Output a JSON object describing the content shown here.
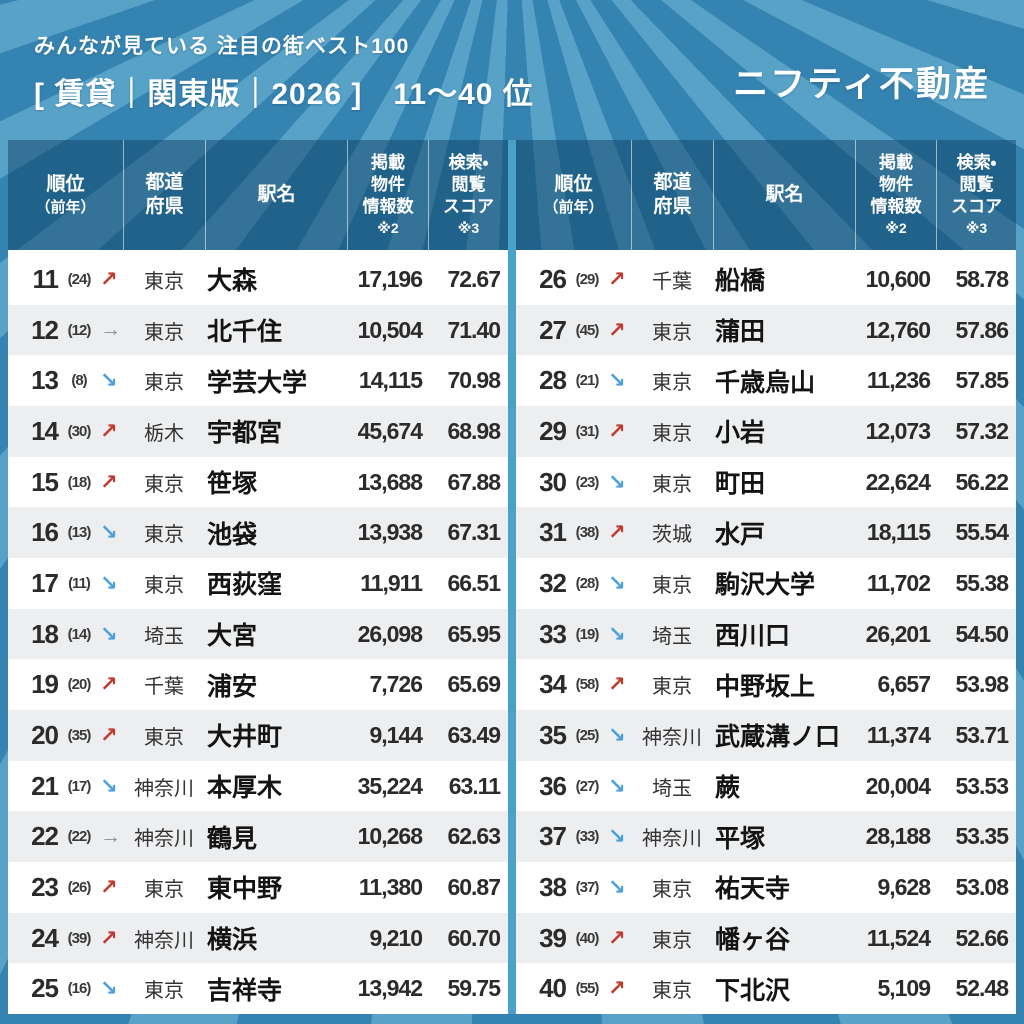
{
  "page": {
    "subtitle": "みんなが見ている 注目の街ベスト100",
    "title": "[ 賃貸｜関東版｜2026 ]　11〜40 位",
    "logo": "ニフティ不動産"
  },
  "table": {
    "header": {
      "rank_l1": "順位",
      "rank_l2": "（前年）",
      "pref_l1": "都道",
      "pref_l2": "府県",
      "station": "駅名",
      "count_l1": "掲載",
      "count_l2": "物件",
      "count_l3": "情報数",
      "count_note": "※2",
      "score_l1": "検索・",
      "score_l2": "閲覧",
      "score_l3": "スコア",
      "score_note": "※3"
    }
  },
  "trend_glyphs": {
    "up": "↗",
    "flat": "→",
    "down": "↘"
  },
  "colors": {
    "trend_up": "#c0392e",
    "trend_down": "#4aa0dc",
    "trend_flat": "#8c8f92",
    "bg_base": "#3583b1",
    "bg_ray": "#58a2c8",
    "header_overlay": "rgba(10,58,94,0.46)",
    "row_alt": "#eceef0",
    "panel_bg": "#ffffff",
    "text_main": "#2b2b2b"
  },
  "chart_data": {
    "type": "table",
    "title": "みんなが見ている 注目の街ベスト100 [賃貸｜関東版｜2026] 11〜40位",
    "columns": [
      "順位",
      "前年順位",
      "前年比トレンド",
      "都道府県",
      "駅名",
      "掲載物件情報数 ※2",
      "検索・閲覧スコア ※3"
    ],
    "rows": [
      {
        "rank": "11",
        "prev": "(24)",
        "trend": "up",
        "pref": "東京",
        "station": "大森",
        "count": "17,196",
        "score": "72.67"
      },
      {
        "rank": "12",
        "prev": "(12)",
        "trend": "flat",
        "pref": "東京",
        "station": "北千住",
        "count": "10,504",
        "score": "71.40"
      },
      {
        "rank": "13",
        "prev": "(8)",
        "trend": "down",
        "pref": "東京",
        "station": "学芸大学",
        "count": "14,115",
        "score": "70.98"
      },
      {
        "rank": "14",
        "prev": "(30)",
        "trend": "up",
        "pref": "栃木",
        "station": "宇都宮",
        "count": "45,674",
        "score": "68.98"
      },
      {
        "rank": "15",
        "prev": "(18)",
        "trend": "up",
        "pref": "東京",
        "station": "笹塚",
        "count": "13,688",
        "score": "67.88"
      },
      {
        "rank": "16",
        "prev": "(13)",
        "trend": "down",
        "pref": "東京",
        "station": "池袋",
        "count": "13,938",
        "score": "67.31"
      },
      {
        "rank": "17",
        "prev": "(11)",
        "trend": "down",
        "pref": "東京",
        "station": "西荻窪",
        "count": "11,911",
        "score": "66.51"
      },
      {
        "rank": "18",
        "prev": "(14)",
        "trend": "down",
        "pref": "埼玉",
        "station": "大宮",
        "count": "26,098",
        "score": "65.95"
      },
      {
        "rank": "19",
        "prev": "(20)",
        "trend": "up",
        "pref": "千葉",
        "station": "浦安",
        "count": "7,726",
        "score": "65.69"
      },
      {
        "rank": "20",
        "prev": "(35)",
        "trend": "up",
        "pref": "東京",
        "station": "大井町",
        "count": "9,144",
        "score": "63.49"
      },
      {
        "rank": "21",
        "prev": "(17)",
        "trend": "down",
        "pref": "神奈川",
        "station": "本厚木",
        "count": "35,224",
        "score": "63.11"
      },
      {
        "rank": "22",
        "prev": "(22)",
        "trend": "flat",
        "pref": "神奈川",
        "station": "鶴見",
        "count": "10,268",
        "score": "62.63"
      },
      {
        "rank": "23",
        "prev": "(26)",
        "trend": "up",
        "pref": "東京",
        "station": "東中野",
        "count": "11,380",
        "score": "60.87"
      },
      {
        "rank": "24",
        "prev": "(39)",
        "trend": "up",
        "pref": "神奈川",
        "station": "横浜",
        "count": "9,210",
        "score": "60.70"
      },
      {
        "rank": "25",
        "prev": "(16)",
        "trend": "down",
        "pref": "東京",
        "station": "吉祥寺",
        "count": "13,942",
        "score": "59.75"
      },
      {
        "rank": "26",
        "prev": "(29)",
        "trend": "up",
        "pref": "千葉",
        "station": "船橋",
        "count": "10,600",
        "score": "58.78"
      },
      {
        "rank": "27",
        "prev": "(45)",
        "trend": "up",
        "pref": "東京",
        "station": "蒲田",
        "count": "12,760",
        "score": "57.86"
      },
      {
        "rank": "28",
        "prev": "(21)",
        "trend": "down",
        "pref": "東京",
        "station": "千歳烏山",
        "count": "11,236",
        "score": "57.85"
      },
      {
        "rank": "29",
        "prev": "(31)",
        "trend": "up",
        "pref": "東京",
        "station": "小岩",
        "count": "12,073",
        "score": "57.32"
      },
      {
        "rank": "30",
        "prev": "(23)",
        "trend": "down",
        "pref": "東京",
        "station": "町田",
        "count": "22,624",
        "score": "56.22"
      },
      {
        "rank": "31",
        "prev": "(38)",
        "trend": "up",
        "pref": "茨城",
        "station": "水戸",
        "count": "18,115",
        "score": "55.54"
      },
      {
        "rank": "32",
        "prev": "(28)",
        "trend": "down",
        "pref": "東京",
        "station": "駒沢大学",
        "count": "11,702",
        "score": "55.38"
      },
      {
        "rank": "33",
        "prev": "(19)",
        "trend": "down",
        "pref": "埼玉",
        "station": "西川口",
        "count": "26,201",
        "score": "54.50"
      },
      {
        "rank": "34",
        "prev": "(58)",
        "trend": "up",
        "pref": "東京",
        "station": "中野坂上",
        "count": "6,657",
        "score": "53.98"
      },
      {
        "rank": "35",
        "prev": "(25)",
        "trend": "down",
        "pref": "神奈川",
        "station": "武蔵溝ノ口",
        "count": "11,374",
        "score": "53.71"
      },
      {
        "rank": "36",
        "prev": "(27)",
        "trend": "down",
        "pref": "埼玉",
        "station": "蕨",
        "count": "20,004",
        "score": "53.53"
      },
      {
        "rank": "37",
        "prev": "(33)",
        "trend": "down",
        "pref": "神奈川",
        "station": "平塚",
        "count": "28,188",
        "score": "53.35"
      },
      {
        "rank": "38",
        "prev": "(37)",
        "trend": "down",
        "pref": "東京",
        "station": "祐天寺",
        "count": "9,628",
        "score": "53.08"
      },
      {
        "rank": "39",
        "prev": "(40)",
        "trend": "up",
        "pref": "東京",
        "station": "幡ヶ谷",
        "count": "11,524",
        "score": "52.66"
      },
      {
        "rank": "40",
        "prev": "(55)",
        "trend": "up",
        "pref": "東京",
        "station": "下北沢",
        "count": "5,109",
        "score": "52.48"
      }
    ]
  }
}
